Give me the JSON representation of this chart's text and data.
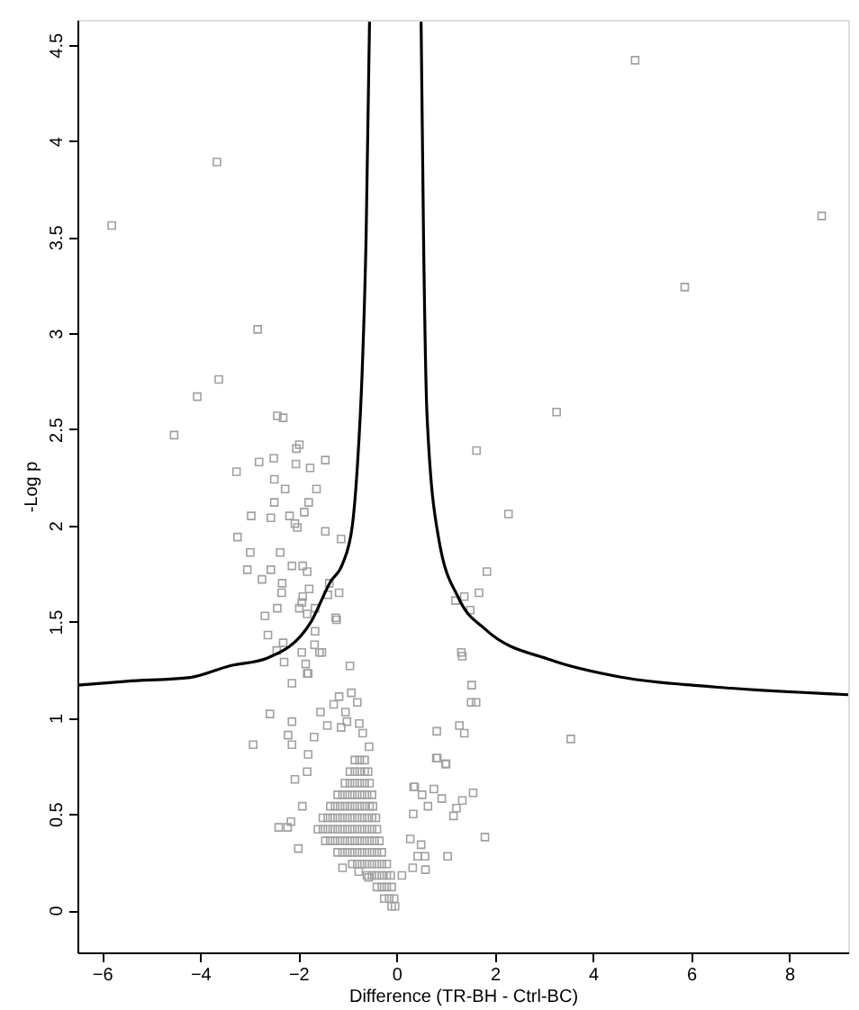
{
  "chart_data": {
    "type": "scatter",
    "xlabel": "Difference (TR-BH - Ctrl-BC)",
    "ylabel": "-Log p",
    "xlim": [
      -6.5,
      9.2
    ],
    "ylim": [
      -0.22,
      4.63
    ],
    "xticks": [
      -6,
      -4,
      -2,
      0,
      2,
      4,
      6,
      8
    ],
    "yticks": [
      0,
      0.5,
      1,
      1.5,
      2,
      2.5,
      3,
      3.5,
      4,
      4.5
    ],
    "grid": false,
    "marker": "square",
    "series": [
      {
        "color": "#a0a0a0",
        "x": [
          -5.8,
          -3.66,
          -4.06,
          -4.53,
          -3.62,
          -2.83,
          4.86,
          8.66,
          5.87,
          3.26,
          1.63,
          2.28,
          1.84,
          1.68,
          1.38,
          1.2,
          1.5,
          1.32,
          1.34,
          1.53,
          1.62,
          1.52,
          0.82,
          1.28,
          1.38,
          3.55,
          0.83,
          1.01,
          0.37,
          0.76,
          1.56,
          0.92,
          1.34,
          0.81,
          1.0,
          0.35,
          0.52,
          0.64,
          1.22,
          0.34,
          1.16,
          1.8,
          0.28,
          0.5,
          0.58,
          1.04,
          0.43,
          0.59,
          0.33,
          0.11,
          -2.43,
          -2.31,
          -1.98,
          -2.04,
          -2.5,
          -2.8,
          -3.26,
          -2.05,
          -1.76,
          -1.45,
          -2.49,
          -2.27,
          -1.63,
          -2.49,
          -1.79,
          -2.96,
          -2.56,
          -2.18,
          -1.88,
          -2.07,
          -2.02,
          -1.45,
          -1.13,
          -3.24,
          -2.98,
          -2.37,
          -3.04,
          -2.56,
          -2.13,
          -1.91,
          -1.82,
          -2.74,
          -2.33,
          -1.37,
          -1.78,
          -2.34,
          -1.4,
          -1.17,
          -1.91,
          -1.93,
          -1.66,
          -2.43,
          -1.98,
          -1.82,
          -2.68,
          -1.24,
          -1.66,
          -2.62,
          -2.31,
          -1.67,
          -2.44,
          -1.93,
          -1.57,
          -2.29,
          -1.85,
          -0.95,
          -1.82,
          -1.22,
          -1.52,
          -1.8,
          -2.13,
          -1.17,
          -0.92,
          -1.28,
          -0.8,
          -1.55,
          -1.04,
          -2.58,
          -1.01,
          -0.76,
          -2.13,
          -1.41,
          -1.13,
          -2.21,
          -0.69,
          -1.68,
          -2.13,
          -2.92,
          -0.56,
          -1.8,
          -1.82,
          -2.07,
          -1.92,
          -2.4,
          -2.22,
          -2.15,
          -2.0,
          -1.1,
          -0.77,
          -0.57,
          -0.85,
          -0.75,
          -0.65,
          -0.95,
          -0.85,
          -0.75,
          -0.65,
          -0.58,
          -1.05,
          -0.95,
          -0.85,
          -0.75,
          -0.65,
          -0.55,
          -1.2,
          -1.1,
          -1.0,
          -0.9,
          -0.8,
          -0.7,
          -0.6,
          -0.5,
          -1.35,
          -1.25,
          -1.15,
          -1.05,
          -0.95,
          -0.85,
          -0.75,
          -0.65,
          -0.55,
          -0.48,
          -1.5,
          -1.4,
          -1.3,
          -1.2,
          -1.1,
          -1.0,
          -0.9,
          -0.8,
          -0.7,
          -0.6,
          -0.5,
          -0.42,
          -1.6,
          -1.5,
          -1.4,
          -1.3,
          -1.2,
          -1.1,
          -1.0,
          -0.9,
          -0.8,
          -0.7,
          -0.6,
          -0.5,
          -0.4,
          -1.45,
          -1.35,
          -1.25,
          -1.15,
          -1.05,
          -0.95,
          -0.85,
          -0.75,
          -0.65,
          -0.55,
          -0.45,
          -0.35,
          -1.2,
          -1.1,
          -1.0,
          -0.9,
          -0.8,
          -0.7,
          -0.6,
          -0.5,
          -0.4,
          -0.3,
          -0.9,
          -0.8,
          -0.7,
          -0.6,
          -0.5,
          -0.4,
          -0.3,
          -0.2,
          -0.6,
          -0.5,
          -0.4,
          -0.3,
          -0.2,
          -0.12,
          -0.4,
          -0.3,
          -0.2,
          -0.1,
          -0.25,
          -0.15,
          -0.05,
          -0.1,
          -0.03
        ],
        "values": [
          3.56,
          3.89,
          2.67,
          2.47,
          2.76,
          3.02,
          4.42,
          3.61,
          3.24,
          2.59,
          2.39,
          2.06,
          1.76,
          1.65,
          1.63,
          1.61,
          1.56,
          1.34,
          1.32,
          1.17,
          1.08,
          1.08,
          0.93,
          0.96,
          0.92,
          0.89,
          0.79,
          0.76,
          0.64,
          0.63,
          0.61,
          0.58,
          0.57,
          0.79,
          0.76,
          0.64,
          0.6,
          0.54,
          0.53,
          0.5,
          0.49,
          0.38,
          0.37,
          0.34,
          0.28,
          0.28,
          0.28,
          0.21,
          0.22,
          0.18,
          2.57,
          2.56,
          2.42,
          2.4,
          2.35,
          2.33,
          2.28,
          2.32,
          2.3,
          2.34,
          2.24,
          2.19,
          2.19,
          2.12,
          2.12,
          2.05,
          2.04,
          2.05,
          2.07,
          2.01,
          1.99,
          1.97,
          1.93,
          1.94,
          1.86,
          1.86,
          1.77,
          1.77,
          1.79,
          1.79,
          1.76,
          1.72,
          1.7,
          1.7,
          1.67,
          1.65,
          1.64,
          1.65,
          1.63,
          1.6,
          1.57,
          1.57,
          1.57,
          1.54,
          1.53,
          1.52,
          1.45,
          1.43,
          1.39,
          1.38,
          1.35,
          1.34,
          1.34,
          1.29,
          1.28,
          1.27,
          1.23,
          1.51,
          1.34,
          1.23,
          1.18,
          1.11,
          1.13,
          1.07,
          1.08,
          1.03,
          1.03,
          1.02,
          0.98,
          0.97,
          0.98,
          0.96,
          0.95,
          0.91,
          0.92,
          0.9,
          0.86,
          0.86,
          0.85,
          0.81,
          0.72,
          0.68,
          0.54,
          0.43,
          0.43,
          0.46,
          0.32,
          0.22,
          0.2,
          0.17,
          0.78,
          0.78,
          0.78,
          0.72,
          0.72,
          0.72,
          0.72,
          0.72,
          0.66,
          0.66,
          0.66,
          0.66,
          0.66,
          0.66,
          0.6,
          0.6,
          0.6,
          0.6,
          0.6,
          0.6,
          0.6,
          0.6,
          0.54,
          0.54,
          0.54,
          0.54,
          0.54,
          0.54,
          0.54,
          0.54,
          0.54,
          0.54,
          0.48,
          0.48,
          0.48,
          0.48,
          0.48,
          0.48,
          0.48,
          0.48,
          0.48,
          0.48,
          0.48,
          0.48,
          0.42,
          0.42,
          0.42,
          0.42,
          0.42,
          0.42,
          0.42,
          0.42,
          0.42,
          0.42,
          0.42,
          0.42,
          0.42,
          0.36,
          0.36,
          0.36,
          0.36,
          0.36,
          0.36,
          0.36,
          0.36,
          0.36,
          0.36,
          0.36,
          0.36,
          0.3,
          0.3,
          0.3,
          0.3,
          0.3,
          0.3,
          0.3,
          0.3,
          0.3,
          0.3,
          0.24,
          0.24,
          0.24,
          0.24,
          0.24,
          0.24,
          0.24,
          0.24,
          0.18,
          0.18,
          0.18,
          0.18,
          0.18,
          0.18,
          0.12,
          0.12,
          0.12,
          0.12,
          0.06,
          0.06,
          0.06,
          0.02,
          0.02
        ]
      },
      {
        "type": "line",
        "marker": "none",
        "color": "#000000",
        "line_style": "solid",
        "x": [
          -0.55,
          -0.62,
          -0.7,
          -0.8,
          -0.9,
          -1.1,
          -1.34,
          -1.74,
          -2.64,
          -3.4,
          -4.2,
          -5.5,
          -6.5
        ],
        "values": [
          4.62,
          3.5,
          2.8,
          2.3,
          2.0,
          1.8,
          1.71,
          1.5,
          1.31,
          1.27,
          1.21,
          1.19,
          1.17
        ]
      },
      {
        "type": "line",
        "marker": "none",
        "color": "#000000",
        "line_style": "solid",
        "x": [
          0.5,
          0.55,
          0.62,
          0.86,
          1.27,
          1.81,
          3.15,
          4.6,
          6.5,
          9.2
        ],
        "values": [
          4.62,
          3.5,
          2.58,
          1.93,
          1.62,
          1.46,
          1.3,
          1.21,
          1.16,
          1.12
        ]
      }
    ]
  }
}
